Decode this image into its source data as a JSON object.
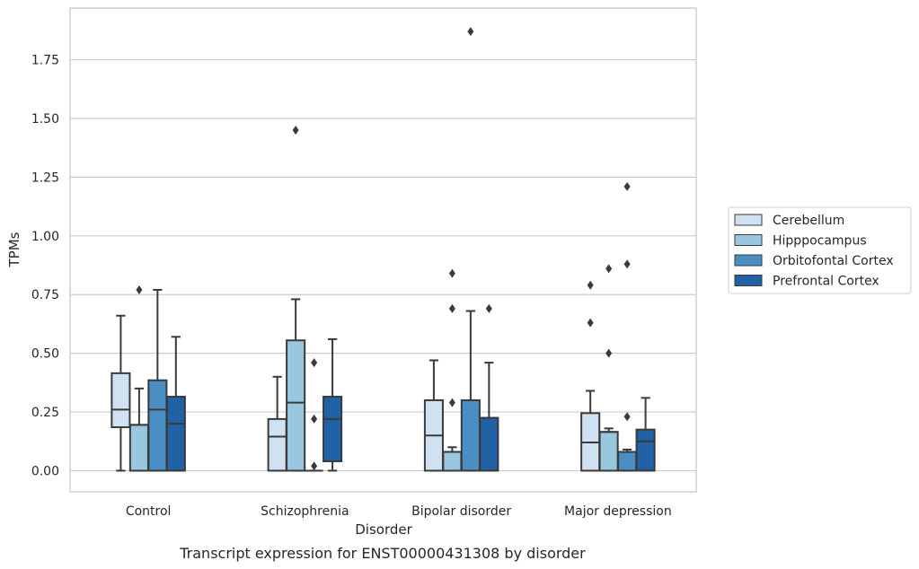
{
  "caption": "Transcript expression for ENST00000431308 by disorder",
  "chart_data": {
    "type": "boxplot",
    "xlabel": "Disorder",
    "ylabel": "TPMs",
    "ylim": [
      -0.09,
      1.97
    ],
    "yticks": [
      0.0,
      0.25,
      0.5,
      0.75,
      1.0,
      1.25,
      1.5,
      1.75
    ],
    "ytick_labels": [
      "0.00",
      "0.25",
      "0.50",
      "0.75",
      "1.00",
      "1.25",
      "1.50",
      "1.75"
    ],
    "grid": "horizontal",
    "legend_placement": "right",
    "categories": [
      "Control",
      "Schizophrenia",
      "Bipolar disorder",
      "Major depression"
    ],
    "series": [
      {
        "name": "Cerebellum",
        "color": "#d0e1f2",
        "boxes": [
          {
            "whislo": 0.0,
            "q1": 0.185,
            "med": 0.26,
            "q3": 0.415,
            "whishi": 0.66,
            "fliers": []
          },
          {
            "whislo": 0.0,
            "q1": 0.0,
            "med": 0.145,
            "q3": 0.22,
            "whishi": 0.4,
            "fliers": []
          },
          {
            "whislo": 0.0,
            "q1": 0.0,
            "med": 0.15,
            "q3": 0.3,
            "whishi": 0.47,
            "fliers": []
          },
          {
            "whislo": 0.0,
            "q1": 0.0,
            "med": 0.12,
            "q3": 0.245,
            "whishi": 0.34,
            "fliers": [
              0.63,
              0.79
            ]
          }
        ]
      },
      {
        "name": "Hipppocampus",
        "color": "#9ac7e0",
        "boxes": [
          {
            "whislo": 0.0,
            "q1": 0.0,
            "med": 0.195,
            "q3": 0.195,
            "whishi": 0.35,
            "fliers": [
              0.77
            ]
          },
          {
            "whislo": 0.0,
            "q1": 0.0,
            "med": 0.29,
            "q3": 0.555,
            "whishi": 0.73,
            "fliers": [
              1.45
            ]
          },
          {
            "whislo": 0.0,
            "q1": 0.0,
            "med": 0.08,
            "q3": 0.08,
            "whishi": 0.1,
            "fliers": [
              0.29,
              0.69,
              0.84
            ]
          },
          {
            "whislo": 0.0,
            "q1": 0.0,
            "med": 0.165,
            "q3": 0.165,
            "whishi": 0.18,
            "fliers": [
              0.5,
              0.86
            ]
          }
        ]
      },
      {
        "name": "Orbitofontal Cortex",
        "color": "#4a8fc4",
        "boxes": [
          {
            "whislo": 0.0,
            "q1": 0.0,
            "med": 0.26,
            "q3": 0.385,
            "whishi": 0.77,
            "fliers": []
          },
          {
            "whislo": 0.0,
            "q1": 0.0,
            "med": 0.0,
            "q3": 0.0,
            "whishi": 0.0,
            "fliers": [
              0.02,
              0.22,
              0.46
            ]
          },
          {
            "whislo": 0.0,
            "q1": 0.0,
            "med": 0.3,
            "q3": 0.3,
            "whishi": 0.68,
            "fliers": [
              1.87
            ]
          },
          {
            "whislo": 0.0,
            "q1": 0.0,
            "med": 0.08,
            "q3": 0.08,
            "whishi": 0.09,
            "fliers": [
              0.23,
              0.88,
              1.21
            ]
          }
        ]
      },
      {
        "name": "Prefrontal Cortex",
        "color": "#2162a6",
        "boxes": [
          {
            "whislo": 0.0,
            "q1": 0.0,
            "med": 0.2,
            "q3": 0.315,
            "whishi": 0.57,
            "fliers": []
          },
          {
            "whislo": 0.0,
            "q1": 0.04,
            "med": 0.22,
            "q3": 0.315,
            "whishi": 0.56,
            "fliers": []
          },
          {
            "whislo": 0.0,
            "q1": 0.0,
            "med": 0.225,
            "q3": 0.225,
            "whishi": 0.46,
            "fliers": [
              0.69
            ]
          },
          {
            "whislo": 0.0,
            "q1": 0.0,
            "med": 0.125,
            "q3": 0.175,
            "whishi": 0.31,
            "fliers": []
          }
        ]
      }
    ]
  }
}
